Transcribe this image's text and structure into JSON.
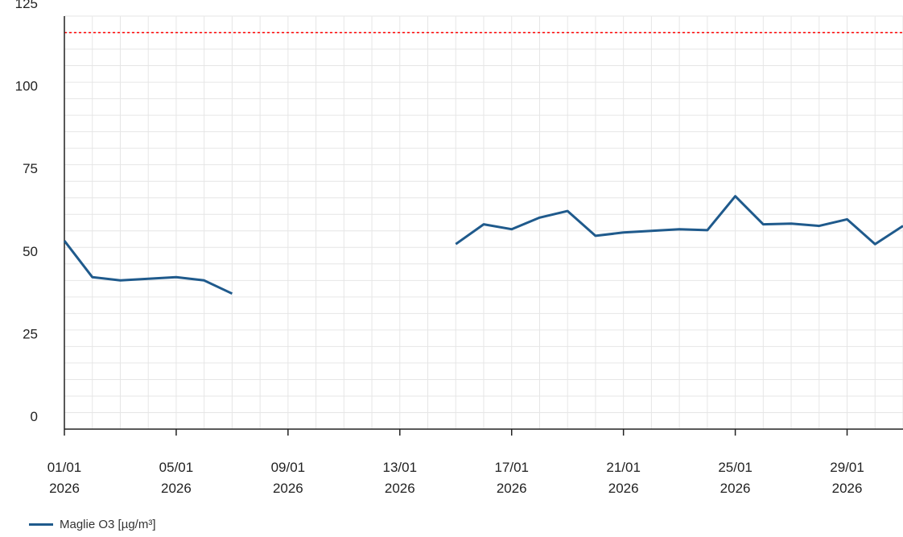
{
  "chart_data": {
    "type": "line",
    "title": "",
    "xlabel": "",
    "ylabel": "",
    "ylim": [
      0,
      125
    ],
    "y_ticks": [
      0,
      25,
      50,
      75,
      100,
      125
    ],
    "x_tick_labels": [
      {
        "date": "2026-01-01",
        "line1": "01/01",
        "line2": "2026"
      },
      {
        "date": "2026-01-05",
        "line1": "05/01",
        "line2": "2026"
      },
      {
        "date": "2026-01-09",
        "line1": "09/01",
        "line2": "2026"
      },
      {
        "date": "2026-01-13",
        "line1": "13/01",
        "line2": "2026"
      },
      {
        "date": "2026-01-17",
        "line1": "17/01",
        "line2": "2026"
      },
      {
        "date": "2026-01-21",
        "line1": "21/01",
        "line2": "2026"
      },
      {
        "date": "2026-01-25",
        "line1": "25/01",
        "line2": "2026"
      },
      {
        "date": "2026-01-29",
        "line1": "29/01",
        "line2": "2026"
      }
    ],
    "xlim": [
      "2026-01-01",
      "2026-01-31"
    ],
    "grid": true,
    "threshold": {
      "value": 120,
      "color": "#ff0000",
      "style": "dotted"
    },
    "legend_position": "bottom-left",
    "series": [
      {
        "name": "Maglie O3 [µg/m³]",
        "color": "#1f5a8c",
        "points": [
          {
            "x": "2026-01-01",
            "y": 57
          },
          {
            "x": "2026-01-02",
            "y": 46
          },
          {
            "x": "2026-01-03",
            "y": 45
          },
          {
            "x": "2026-01-04",
            "y": 45.5
          },
          {
            "x": "2026-01-05",
            "y": 46
          },
          {
            "x": "2026-01-06",
            "y": 45
          },
          {
            "x": "2026-01-07",
            "y": 41
          },
          {
            "x": "2026-01-08",
            "y": null
          },
          {
            "x": "2026-01-09",
            "y": null
          },
          {
            "x": "2026-01-10",
            "y": null
          },
          {
            "x": "2026-01-11",
            "y": null
          },
          {
            "x": "2026-01-12",
            "y": null
          },
          {
            "x": "2026-01-13",
            "y": null
          },
          {
            "x": "2026-01-14",
            "y": null
          },
          {
            "x": "2026-01-15",
            "y": 56
          },
          {
            "x": "2026-01-16",
            "y": 62
          },
          {
            "x": "2026-01-17",
            "y": 60.5
          },
          {
            "x": "2026-01-18",
            "y": 64
          },
          {
            "x": "2026-01-19",
            "y": 66
          },
          {
            "x": "2026-01-20",
            "y": 58.5
          },
          {
            "x": "2026-01-21",
            "y": 59.5
          },
          {
            "x": "2026-01-22",
            "y": 60
          },
          {
            "x": "2026-01-23",
            "y": 60.5
          },
          {
            "x": "2026-01-24",
            "y": 60.2
          },
          {
            "x": "2026-01-25",
            "y": 70.5
          },
          {
            "x": "2026-01-26",
            "y": 62
          },
          {
            "x": "2026-01-27",
            "y": 62.2
          },
          {
            "x": "2026-01-28",
            "y": 61.5
          },
          {
            "x": "2026-01-29",
            "y": 63.5
          },
          {
            "x": "2026-01-30",
            "y": 56
          },
          {
            "x": "2026-01-31",
            "y": 61.5
          }
        ]
      }
    ]
  }
}
